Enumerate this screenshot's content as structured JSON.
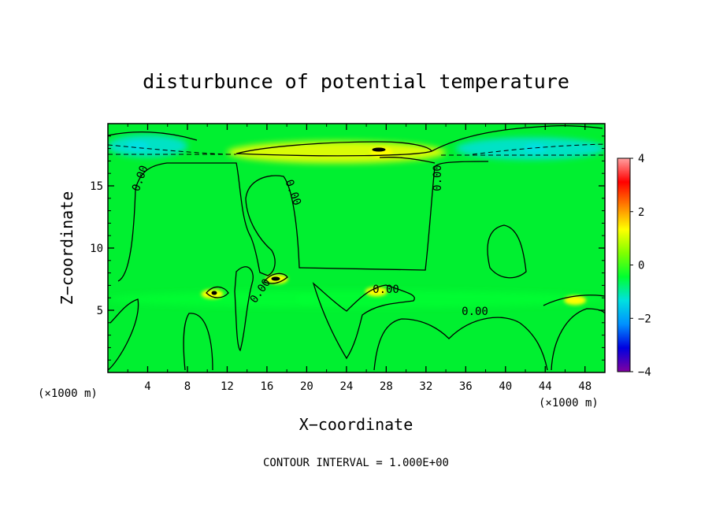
{
  "chart_data": {
    "type": "heatmap",
    "title": "disturbunce of potential temperature",
    "xlabel": "X−coordinate",
    "ylabel": "Z−coordinate",
    "x_unit": "(×1000 m)",
    "z_unit": "(×1000 m)",
    "xlim": [
      0,
      50
    ],
    "zlim": [
      0,
      20
    ],
    "x_ticks": [
      4,
      8,
      12,
      16,
      20,
      24,
      28,
      32,
      36,
      40,
      44,
      48
    ],
    "z_ticks": [
      5,
      10,
      15
    ],
    "colorbar": {
      "range": [
        -4,
        4
      ],
      "ticks": [
        4,
        2,
        0,
        -2,
        -4
      ],
      "colors": [
        "#8000a0",
        "#0000e0",
        "#0090ff",
        "#00e0e0",
        "#00ff30",
        "#80ff00",
        "#ffff00",
        "#ff8000",
        "#ff0000",
        "#ffa0a0"
      ]
    },
    "contour_interval": "CONTOUR INTERVAL = 1.000E+00",
    "contour_labels": [
      "0.00",
      "0.00",
      "0.00",
      "0.00",
      "0.00",
      "0.00"
    ],
    "features": [
      {
        "x": 27.5,
        "z": 17.7,
        "value": 1.5
      },
      {
        "x": 43.0,
        "z": 18.0,
        "value": -1.0
      },
      {
        "x": 3.0,
        "z": 18.2,
        "value": -1.0
      },
      {
        "x": 17.0,
        "z": 7.5,
        "value": 1.5
      },
      {
        "x": 10.5,
        "z": 6.3,
        "value": 1.0
      },
      {
        "x": 27.0,
        "z": 6.5,
        "value": 1.0
      },
      {
        "x": 47.0,
        "z": 5.8,
        "value": 1.0
      },
      {
        "x": 20.0,
        "z": 5.9,
        "value": -0.5
      }
    ]
  }
}
